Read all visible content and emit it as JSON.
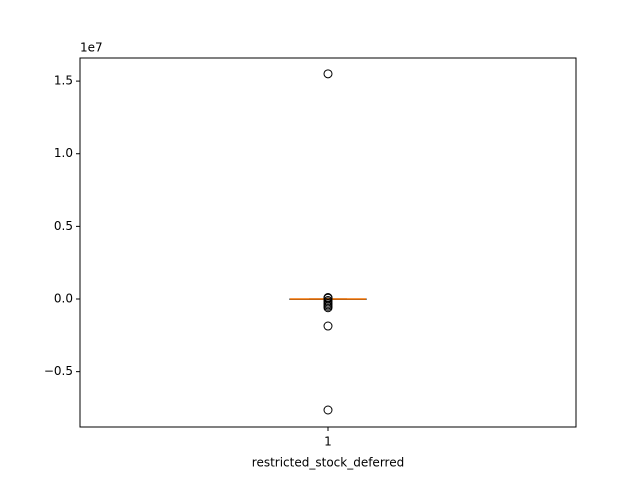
{
  "chart_data": {
    "type": "box",
    "x_label": "restricted_stock_deferred",
    "offset_label": "1e7",
    "categories": [
      "1"
    ],
    "boxes": [
      {
        "whisker_low": -0.001,
        "q1": -0.0005,
        "median": 0,
        "q3": 0.0005,
        "whisker_high": 0.001,
        "outliers": [
          1.55,
          0.01,
          0.005,
          -0.01,
          -0.02,
          -0.03,
          -0.04,
          -0.05,
          -0.06,
          -0.186,
          -0.764
        ]
      }
    ],
    "box_color": "#000000",
    "median_color": "#ff7f0e",
    "ylim": [
      -0.881,
      1.659
    ],
    "yticks": [
      {
        "value": -0.5,
        "label": "−0.5"
      },
      {
        "value": 0,
        "label": "0.0"
      },
      {
        "value": 0.5,
        "label": "0.5"
      },
      {
        "value": 1,
        "label": "1.0"
      },
      {
        "value": 1.5,
        "label": "1.5"
      }
    ],
    "grid": false
  }
}
